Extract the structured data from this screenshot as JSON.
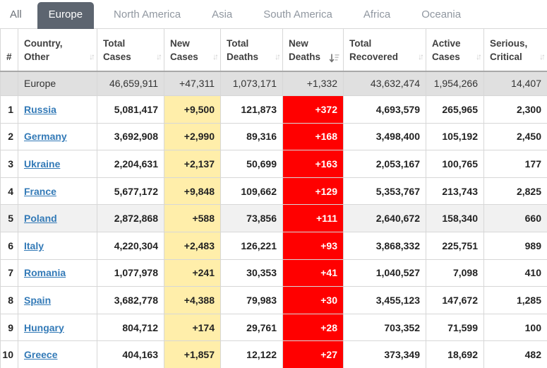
{
  "tabs": {
    "items": [
      {
        "id": "all",
        "label": "All",
        "active": false
      },
      {
        "id": "europe",
        "label": "Europe",
        "active": true
      },
      {
        "id": "north-america",
        "label": "North America",
        "active": false
      },
      {
        "id": "asia",
        "label": "Asia",
        "active": false
      },
      {
        "id": "south-america",
        "label": "South America",
        "active": false
      },
      {
        "id": "africa",
        "label": "Africa",
        "active": false
      },
      {
        "id": "oceania",
        "label": "Oceania",
        "active": false
      }
    ]
  },
  "table": {
    "columns": [
      {
        "key": "rank",
        "line1": "#",
        "line2": "",
        "sort": "none"
      },
      {
        "key": "country",
        "line1": "Country,",
        "line2": "Other",
        "sort": "inactive"
      },
      {
        "key": "total_cases",
        "line1": "Total",
        "line2": "Cases",
        "sort": "inactive"
      },
      {
        "key": "new_cases",
        "line1": "New",
        "line2": "Cases",
        "sort": "inactive"
      },
      {
        "key": "total_deaths",
        "line1": "Total",
        "line2": "Deaths",
        "sort": "inactive"
      },
      {
        "key": "new_deaths",
        "line1": "New",
        "line2": "Deaths",
        "sort": "active-desc"
      },
      {
        "key": "total_recovered",
        "line1": "Total",
        "line2": "Recovered",
        "sort": "inactive"
      },
      {
        "key": "active_cases",
        "line1": "Active",
        "line2": "Cases",
        "sort": "inactive"
      },
      {
        "key": "serious",
        "line1": "Serious,",
        "line2": "Critical",
        "sort": "inactive"
      }
    ],
    "summary": {
      "country": "Europe",
      "total_cases": "46,659,911",
      "new_cases": "+47,311",
      "total_deaths": "1,073,171",
      "new_deaths": "+1,332",
      "total_recovered": "43,632,474",
      "active_cases": "1,954,266",
      "serious": "14,407"
    },
    "rows": [
      {
        "rank": "1",
        "country": "Russia",
        "total_cases": "5,081,417",
        "new_cases": "+9,500",
        "total_deaths": "121,873",
        "new_deaths": "+372",
        "total_recovered": "4,693,579",
        "active_cases": "265,965",
        "serious": "2,300",
        "highlight": false
      },
      {
        "rank": "2",
        "country": "Germany",
        "total_cases": "3,692,908",
        "new_cases": "+2,990",
        "total_deaths": "89,316",
        "new_deaths": "+168",
        "total_recovered": "3,498,400",
        "active_cases": "105,192",
        "serious": "2,450",
        "highlight": false
      },
      {
        "rank": "3",
        "country": "Ukraine",
        "total_cases": "2,204,631",
        "new_cases": "+2,137",
        "total_deaths": "50,699",
        "new_deaths": "+163",
        "total_recovered": "2,053,167",
        "active_cases": "100,765",
        "serious": "177",
        "highlight": false
      },
      {
        "rank": "4",
        "country": "France",
        "total_cases": "5,677,172",
        "new_cases": "+9,848",
        "total_deaths": "109,662",
        "new_deaths": "+129",
        "total_recovered": "5,353,767",
        "active_cases": "213,743",
        "serious": "2,825",
        "highlight": false
      },
      {
        "rank": "5",
        "country": "Poland",
        "total_cases": "2,872,868",
        "new_cases": "+588",
        "total_deaths": "73,856",
        "new_deaths": "+111",
        "total_recovered": "2,640,672",
        "active_cases": "158,340",
        "serious": "660",
        "highlight": true
      },
      {
        "rank": "6",
        "country": "Italy",
        "total_cases": "4,220,304",
        "new_cases": "+2,483",
        "total_deaths": "126,221",
        "new_deaths": "+93",
        "total_recovered": "3,868,332",
        "active_cases": "225,751",
        "serious": "989",
        "highlight": false
      },
      {
        "rank": "7",
        "country": "Romania",
        "total_cases": "1,077,978",
        "new_cases": "+241",
        "total_deaths": "30,353",
        "new_deaths": "+41",
        "total_recovered": "1,040,527",
        "active_cases": "7,098",
        "serious": "410",
        "highlight": false
      },
      {
        "rank": "8",
        "country": "Spain",
        "total_cases": "3,682,778",
        "new_cases": "+4,388",
        "total_deaths": "79,983",
        "new_deaths": "+30",
        "total_recovered": "3,455,123",
        "active_cases": "147,672",
        "serious": "1,285",
        "highlight": false
      },
      {
        "rank": "9",
        "country": "Hungary",
        "total_cases": "804,712",
        "new_cases": "+174",
        "total_deaths": "29,761",
        "new_deaths": "+28",
        "total_recovered": "703,352",
        "active_cases": "71,599",
        "serious": "100",
        "highlight": false
      },
      {
        "rank": "10",
        "country": "Greece",
        "total_cases": "404,163",
        "new_cases": "+1,857",
        "total_deaths": "12,122",
        "new_deaths": "+27",
        "total_recovered": "373,349",
        "active_cases": "18,692",
        "serious": "482",
        "highlight": false
      }
    ]
  },
  "colors": {
    "active_tab_bg": "#5d6570",
    "new_cases_bg": "#FFEEAA",
    "new_deaths_bg": "#FF0000",
    "link_blue": "#337ab7",
    "summary_row_bg": "#e0e0e0",
    "stripe_row_bg": "#f1f1f1"
  }
}
